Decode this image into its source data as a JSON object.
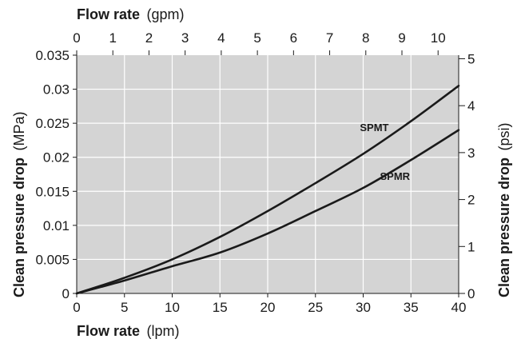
{
  "chart_data": {
    "type": "line",
    "colors": {
      "plot_background": "#d4d4d4",
      "grid": "#ffffff",
      "line": "#1a1a1a"
    },
    "x_bottom": {
      "label_main": "Flow rate",
      "label_unit": "(lpm)",
      "range": [
        0,
        40
      ],
      "ticks": [
        0,
        5,
        10,
        15,
        20,
        25,
        30,
        35,
        40
      ]
    },
    "x_top": {
      "label_main": "Flow rate",
      "label_unit": "(gpm)",
      "range": [
        0,
        10.57
      ],
      "ticks": [
        0,
        1,
        2,
        3,
        4,
        5,
        6,
        7,
        8,
        9,
        10
      ]
    },
    "y_left": {
      "label_main": "Clean pressure drop",
      "label_unit": "(MPa)",
      "range": [
        0,
        0.035
      ],
      "ticks": [
        "0",
        "0.005",
        "0.01",
        "0.015",
        "0.02",
        "0.025",
        "0.03",
        "0.035"
      ]
    },
    "y_right": {
      "label_main": "Clean pressure drop",
      "label_unit": "(psi)",
      "range": [
        0,
        5.076
      ],
      "ticks": [
        0,
        1,
        2,
        3,
        4,
        5
      ]
    },
    "grid": true,
    "series": [
      {
        "name": "SPMT",
        "x": [
          0,
          5,
          10,
          15,
          20,
          25,
          30,
          35,
          40
        ],
        "y": [
          0,
          0.0023,
          0.005,
          0.0083,
          0.0121,
          0.0162,
          0.0205,
          0.0253,
          0.0305
        ]
      },
      {
        "name": "SPMR",
        "x": [
          0,
          5,
          10,
          15,
          20,
          25,
          30,
          35,
          40
        ],
        "y": [
          0,
          0.0019,
          0.004,
          0.006,
          0.0088,
          0.0121,
          0.0155,
          0.0196,
          0.024
        ]
      }
    ]
  }
}
